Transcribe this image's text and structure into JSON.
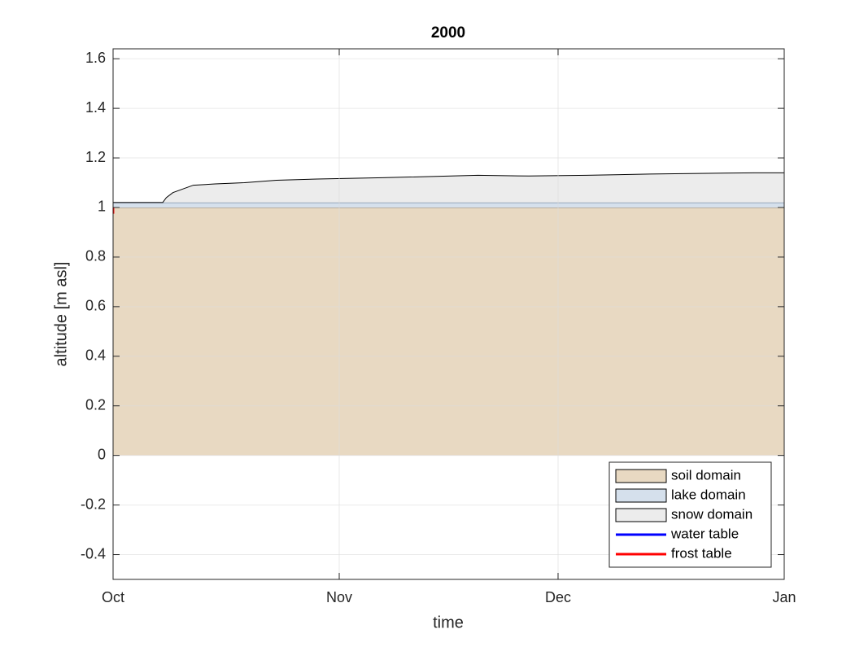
{
  "chart_data": {
    "type": "area",
    "title": "2000",
    "x_label": "time",
    "y_label": "altitude [m asl]",
    "x": [
      0,
      0.3,
      6.8,
      7.3,
      8.2,
      11,
      14,
      18,
      22.4,
      28,
      36.9,
      50,
      57,
      65,
      73.6,
      87.9,
      92
    ],
    "xlim": [
      0,
      92
    ],
    "xticks": [
      {
        "value": 0,
        "label": "Oct"
      },
      {
        "value": 31,
        "label": "Nov"
      },
      {
        "value": 61,
        "label": "Dec"
      },
      {
        "value": 92,
        "label": "Jan"
      }
    ],
    "ylim": [
      -0.5,
      1.64
    ],
    "yticks": [
      -0.4,
      -0.2,
      0,
      0.2,
      0.4,
      0.6,
      0.8,
      1,
      1.2,
      1.4,
      1.6
    ],
    "grid": true,
    "legend": "southeast",
    "series": [
      {
        "name": "soil domain",
        "color": "#e8d9c2",
        "edge_color": "#000000",
        "values": [
          1,
          1,
          1,
          1,
          1,
          1,
          1,
          1,
          1,
          1,
          1,
          1,
          1,
          1,
          1,
          1,
          1
        ]
      },
      {
        "name": "lake domain",
        "color": "#d5e0ec",
        "edge_color": "#50688a",
        "values": [
          0.02,
          0.02,
          0.02,
          0.02,
          0.02,
          0.02,
          0.02,
          0.02,
          0.02,
          0.02,
          0.02,
          0.02,
          0.02,
          0.02,
          0.02,
          0.02,
          0.02
        ]
      },
      {
        "name": "snow domain",
        "color": "#ececec",
        "edge_color": "#000000",
        "values": [
          0,
          0,
          0,
          0.02,
          0.04,
          0.07,
          0.075,
          0.08,
          0.09,
          0.095,
          0.1,
          0.11,
          0.107,
          0.11,
          0.115,
          0.12,
          0.12
        ]
      },
      {
        "name": "water table",
        "type": "line",
        "color": "#0000ff",
        "x": [
          0
        ],
        "values": [
          null
        ]
      },
      {
        "name": "frost table",
        "type": "line",
        "color": "#ff0000",
        "x": [
          0.05,
          0.05
        ],
        "values": [
          0.975,
          1.0
        ]
      }
    ]
  }
}
